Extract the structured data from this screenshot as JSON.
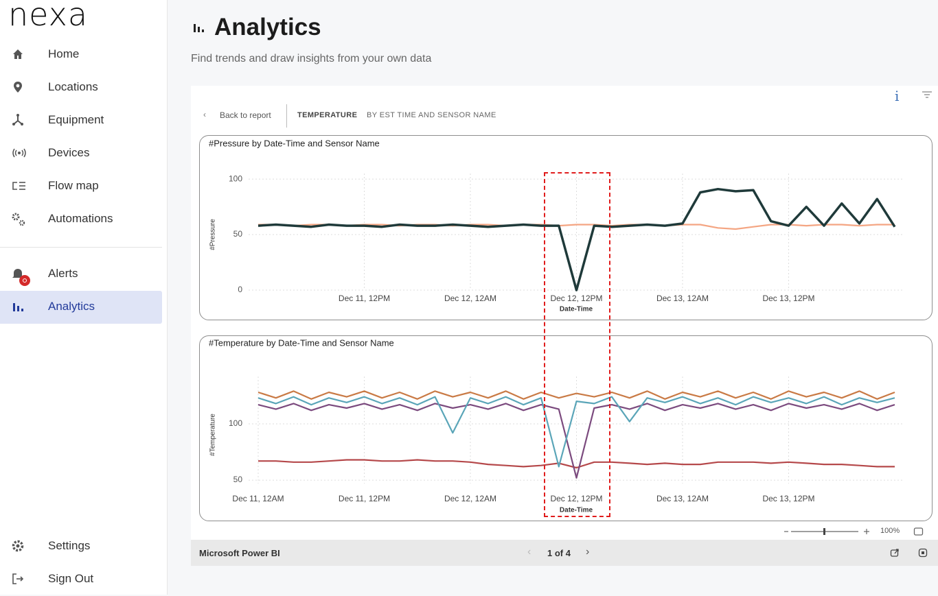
{
  "sidebar": {
    "logo": "nexa",
    "items": [
      {
        "label": "Home"
      },
      {
        "label": "Locations"
      },
      {
        "label": "Equipment"
      },
      {
        "label": "Devices"
      },
      {
        "label": "Flow map"
      },
      {
        "label": "Automations"
      },
      {
        "label": "Alerts"
      },
      {
        "label": "Analytics"
      },
      {
        "label": "Settings"
      },
      {
        "label": "Sign Out"
      }
    ]
  },
  "header": {
    "title": "Analytics",
    "subtitle": "Find trends and draw insights from your own data"
  },
  "report": {
    "back": "Back to report",
    "breadcrumb": [
      "TEMPERATURE",
      "BY EST TIME AND SENSOR NAME"
    ],
    "footer": {
      "brand": "Microsoft Power BI",
      "page": "1 of 4",
      "zoom": "100%"
    }
  },
  "chart_data": [
    {
      "type": "line",
      "title": "#Pressure by Date-Time and Sensor Name",
      "x_label": "Date-Time",
      "y_label": "#Pressure",
      "x": [
        "Dec 11, 12AM",
        "Dec 11, 2AM",
        "Dec 11, 4AM",
        "Dec 11, 6AM",
        "Dec 11, 8AM",
        "Dec 11, 10AM",
        "Dec 11, 12PM",
        "Dec 11, 2PM",
        "Dec 11, 4PM",
        "Dec 11, 6PM",
        "Dec 11, 8PM",
        "Dec 11, 10PM",
        "Dec 12, 12AM",
        "Dec 12, 2AM",
        "Dec 12, 4AM",
        "Dec 12, 6AM",
        "Dec 12, 8AM",
        "Dec 12, 10AM",
        "Dec 12, 12PM",
        "Dec 12, 2PM",
        "Dec 12, 4PM",
        "Dec 12, 6PM",
        "Dec 12, 8PM",
        "Dec 12, 10PM",
        "Dec 13, 12AM",
        "Dec 13, 2AM",
        "Dec 13, 4AM",
        "Dec 13, 6AM",
        "Dec 13, 8AM",
        "Dec 13, 10AM",
        "Dec 13, 12PM",
        "Dec 13, 2PM",
        "Dec 13, 4PM",
        "Dec 13, 6PM",
        "Dec 13, 8PM",
        "Dec 13, 10PM",
        "Dec 14, 12AM"
      ],
      "xlim": [
        "Dec 11, 12AM",
        "Dec 14, 12AM"
      ],
      "xticks": [
        "Dec 11, 12PM",
        "Dec 12, 12AM",
        "Dec 12, 12PM",
        "Dec 13, 12AM",
        "Dec 13, 12PM"
      ],
      "ylim": [
        0,
        105
      ],
      "yticks": [
        0,
        50,
        100
      ],
      "grid": true,
      "series": [
        {
          "color": "#f4a582",
          "values": [
            59,
            59,
            58,
            59,
            59,
            58,
            59,
            59,
            58,
            59,
            59,
            58,
            59,
            59,
            58,
            59,
            59,
            58,
            59,
            59,
            58,
            59,
            59,
            58,
            59,
            59,
            56,
            55,
            57,
            59,
            59,
            58,
            59,
            59,
            58,
            59,
            59
          ]
        },
        {
          "color": "#1f3a3a",
          "values": [
            58,
            59,
            58,
            57,
            59,
            58,
            58,
            57,
            59,
            58,
            58,
            59,
            58,
            57,
            58,
            59,
            58,
            58,
            0,
            58,
            57,
            58,
            59,
            58,
            60,
            88,
            91,
            89,
            90,
            62,
            58,
            75,
            58,
            78,
            60,
            82,
            57
          ]
        }
      ]
    },
    {
      "type": "line",
      "title": "#Temperature by Date-Time and Sensor Name",
      "x_label": "Date-Time",
      "y_label": "#Temperature",
      "x": [
        "Dec 11, 12AM",
        "Dec 11, 2AM",
        "Dec 11, 4AM",
        "Dec 11, 6AM",
        "Dec 11, 8AM",
        "Dec 11, 10AM",
        "Dec 11, 12PM",
        "Dec 11, 2PM",
        "Dec 11, 4PM",
        "Dec 11, 6PM",
        "Dec 11, 8PM",
        "Dec 11, 10PM",
        "Dec 12, 12AM",
        "Dec 12, 2AM",
        "Dec 12, 4AM",
        "Dec 12, 6AM",
        "Dec 12, 8AM",
        "Dec 12, 10AM",
        "Dec 12, 12PM",
        "Dec 12, 2PM",
        "Dec 12, 4PM",
        "Dec 12, 6PM",
        "Dec 12, 8PM",
        "Dec 12, 10PM",
        "Dec 13, 12AM",
        "Dec 13, 2AM",
        "Dec 13, 4AM",
        "Dec 13, 6AM",
        "Dec 13, 8AM",
        "Dec 13, 10AM",
        "Dec 13, 12PM",
        "Dec 13, 2PM",
        "Dec 13, 4PM",
        "Dec 13, 6PM",
        "Dec 13, 8PM",
        "Dec 13, 10PM",
        "Dec 14, 12AM"
      ],
      "xlim": [
        "Dec 11, 12AM",
        "Dec 14, 12AM"
      ],
      "xticks": [
        "Dec 11, 12AM",
        "Dec 11, 12PM",
        "Dec 12, 12AM",
        "Dec 12, 12PM",
        "Dec 13, 12AM",
        "Dec 13, 12PM"
      ],
      "ylim": [
        47,
        142
      ],
      "yticks": [
        50,
        100
      ],
      "grid": true,
      "series": [
        {
          "color": "#b5484a",
          "values": [
            67,
            67,
            66,
            66,
            67,
            68,
            68,
            67,
            67,
            68,
            67,
            67,
            66,
            64,
            63,
            62,
            63,
            65,
            61,
            66,
            66,
            65,
            64,
            65,
            64,
            64,
            66,
            66,
            66,
            65,
            66,
            65,
            64,
            64,
            63,
            62,
            62
          ]
        },
        {
          "color": "#7b4a7e",
          "values": [
            117,
            113,
            118,
            112,
            117,
            114,
            118,
            113,
            117,
            112,
            118,
            114,
            117,
            113,
            118,
            112,
            117,
            113,
            52,
            114,
            117,
            113,
            118,
            112,
            117,
            114,
            118,
            113,
            117,
            112,
            118,
            114,
            117,
            113,
            118,
            112,
            117
          ]
        },
        {
          "color": "#5aa5b8",
          "values": [
            123,
            118,
            124,
            117,
            123,
            119,
            124,
            118,
            123,
            117,
            124,
            92,
            123,
            118,
            124,
            117,
            123,
            62,
            120,
            118,
            124,
            102,
            123,
            119,
            124,
            118,
            123,
            117,
            124,
            119,
            123,
            118,
            124,
            117,
            123,
            119,
            123
          ]
        },
        {
          "color": "#c97a45",
          "values": [
            128,
            123,
            129,
            122,
            128,
            124,
            129,
            123,
            128,
            122,
            129,
            124,
            128,
            123,
            129,
            122,
            128,
            123,
            127,
            124,
            128,
            123,
            129,
            122,
            128,
            124,
            129,
            123,
            128,
            122,
            129,
            124,
            128,
            123,
            129,
            122,
            128
          ]
        }
      ]
    }
  ]
}
